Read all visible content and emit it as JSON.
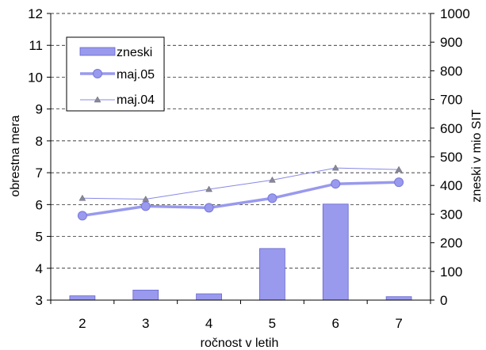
{
  "chart_data": {
    "type": "bar+line",
    "categories": [
      "2",
      "3",
      "4",
      "5",
      "6",
      "7"
    ],
    "x": [
      2,
      3,
      4,
      5,
      6,
      7
    ],
    "xlabel": "ročnost v letih",
    "ylabel_left": "obrestna mera",
    "ylabel_right": "zneski v mio SIT",
    "ylim_left": [
      3,
      12
    ],
    "ylim_right": [
      0,
      1000
    ],
    "yticks_left": [
      "3",
      "4",
      "5",
      "6",
      "7",
      "8",
      "9",
      "10",
      "11",
      "12"
    ],
    "yticks_right": [
      "0",
      "100",
      "200",
      "300",
      "400",
      "500",
      "600",
      "700",
      "800",
      "900",
      "1000"
    ],
    "grid": "horizontal dashed",
    "legend_position": "top-left",
    "series": [
      {
        "name": "zneski",
        "kind": "bar",
        "axis": "right",
        "color": "#9999ee",
        "values": [
          15,
          35,
          22,
          180,
          335,
          12
        ]
      },
      {
        "name": "maj.05",
        "kind": "line",
        "axis": "left",
        "marker": "circle",
        "color": "#9999ee",
        "values": [
          5.65,
          5.95,
          5.9,
          6.2,
          6.65,
          6.7
        ]
      },
      {
        "name": "maj.04",
        "kind": "line",
        "axis": "left",
        "marker": "triangle",
        "color": "#8888e8",
        "values": [
          6.2,
          6.17,
          6.48,
          6.77,
          7.15,
          7.1
        ]
      }
    ]
  }
}
